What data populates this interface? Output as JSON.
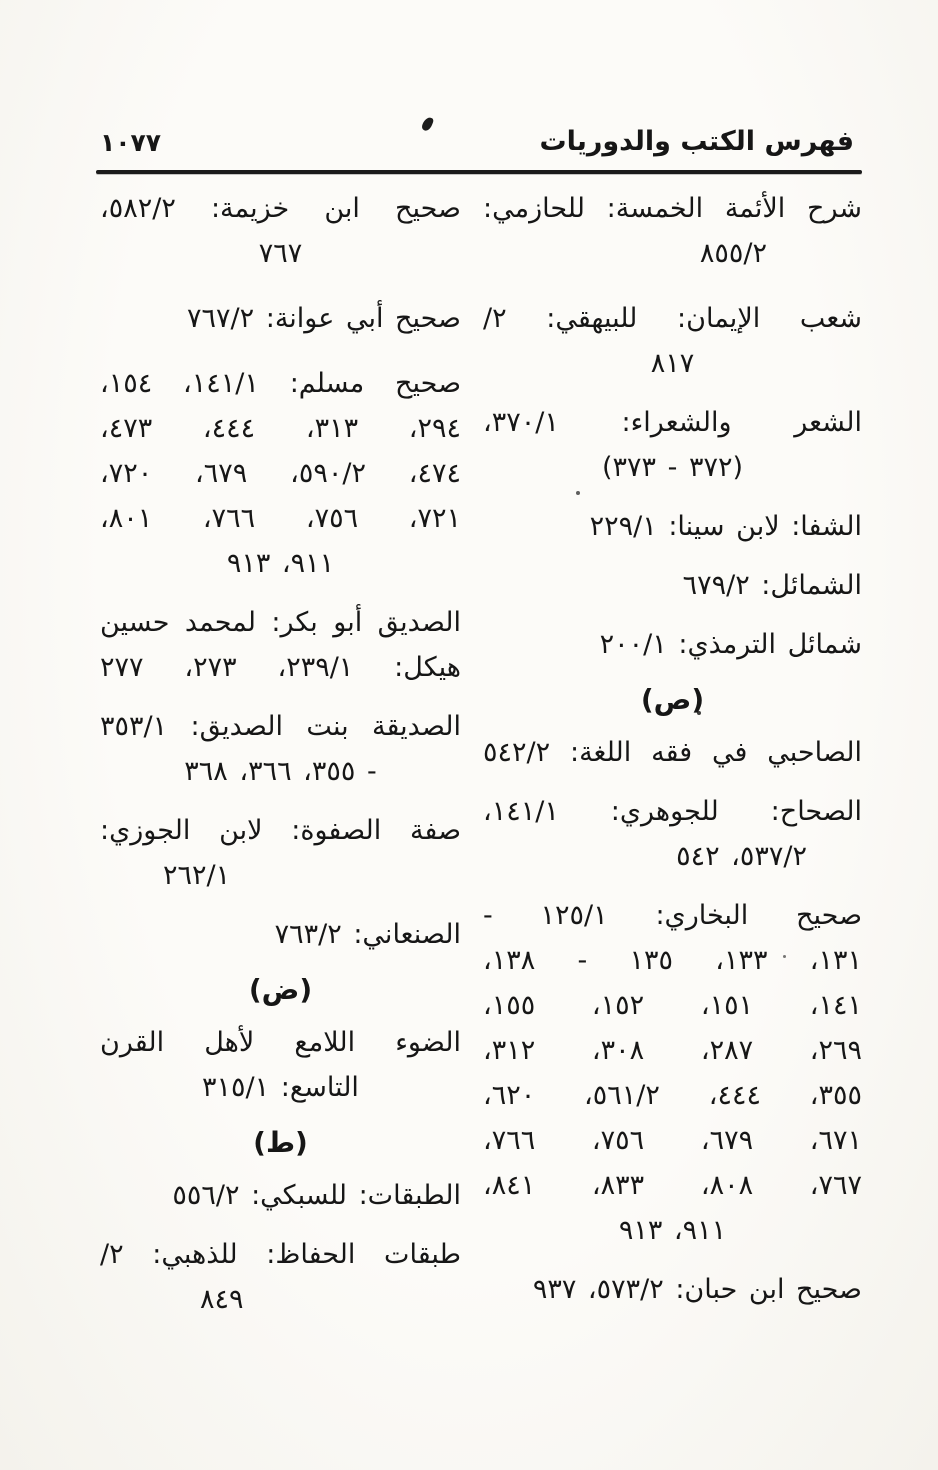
{
  "theme": {
    "paper_color": "#fbfaf7",
    "ink_color": "#161616"
  },
  "header": {
    "page_number": "١٠٧٧",
    "title": "فهرس الكتب والدوريات"
  },
  "right_column": {
    "lines": [
      "شرح الأئمة الخمسة: للحازمي:",
      "٨٥٥/٢",
      "شعب الإيمان: للبيهقي: ٢/",
      "٨١٧",
      "الشعر والشعراء: ٣٧٠/١،",
      "(٣٧٢ - ٣٧٣)",
      "الشفا: لابن سينا: ٢٢٩/١",
      "الشمائل: ٦٧٩/٢",
      "شمائل الترمذي: ٢٠٠/١",
      "(ص)",
      "الصاحبي في فقه اللغة: ٥٤٢/٢",
      "الصحاح: للجوهري: ١٤١/١،",
      "٥٣٧/٢، ٥٤٢",
      "صحيح البخاري: ١٢٥/١ -",
      "١٣١، ١٣٣، ١٣٥ - ١٣٨،",
      "١٤١، ١٥١، ١٥٢، ١٥٥،",
      "٢٦٩، ٢٨٧، ٣٠٨، ٣١٢،",
      "٣٥٥، ٤٤٤، ٥٦١/٢، ٦٢٠،",
      "٦٧١، ٦٧٩، ٧٥٦، ٧٦٦،",
      "٧٦٧، ٨٠٨، ٨٣٣، ٨٤١،",
      "٩١١، ٩١٣",
      "صحيح ابن حبان: ٥٧٣/٢، ٩٣٧"
    ]
  },
  "left_column": {
    "lines": [
      "صحيح ابن خزيمة: ٥٨٢/٢،",
      "٧٦٧",
      "صحيح أبي عوانة: ٧٦٧/٢",
      "صحيح مسلم: ١٤١/١، ١٥٤،",
      "٢٩٤، ٣١٣، ٤٤٤، ٤٧٣،",
      "٤٧٤، ٥٩٠/٢، ٦٧٩، ٧٢٠،",
      "٧٢١، ٧٥٦، ٧٦٦، ٨٠١،",
      "٩١١، ٩١٣",
      "الصديق أبو بكر: لمحمد حسين",
      "هيكل: ٢٣٩/١، ٢٧٣، ٢٧٧",
      "الصديقة بنت الصديق: ٣٥٣/١",
      "- ٣٥٥، ٣٦٦، ٣٦٨",
      "صفة الصفوة: لابن الجوزي:",
      "٢٦٢/١",
      "الصنعاني: ٧٦٣/٢",
      "(ض)",
      "الضوء اللامع لأهل القرن",
      "التاسع: ٣١٥/١",
      "(ط)",
      "الطبقات: للسبكي: ٥٥٦/٢",
      "طبقات الحفاظ: للذهبي: ٢/",
      "٨٤٩"
    ]
  }
}
